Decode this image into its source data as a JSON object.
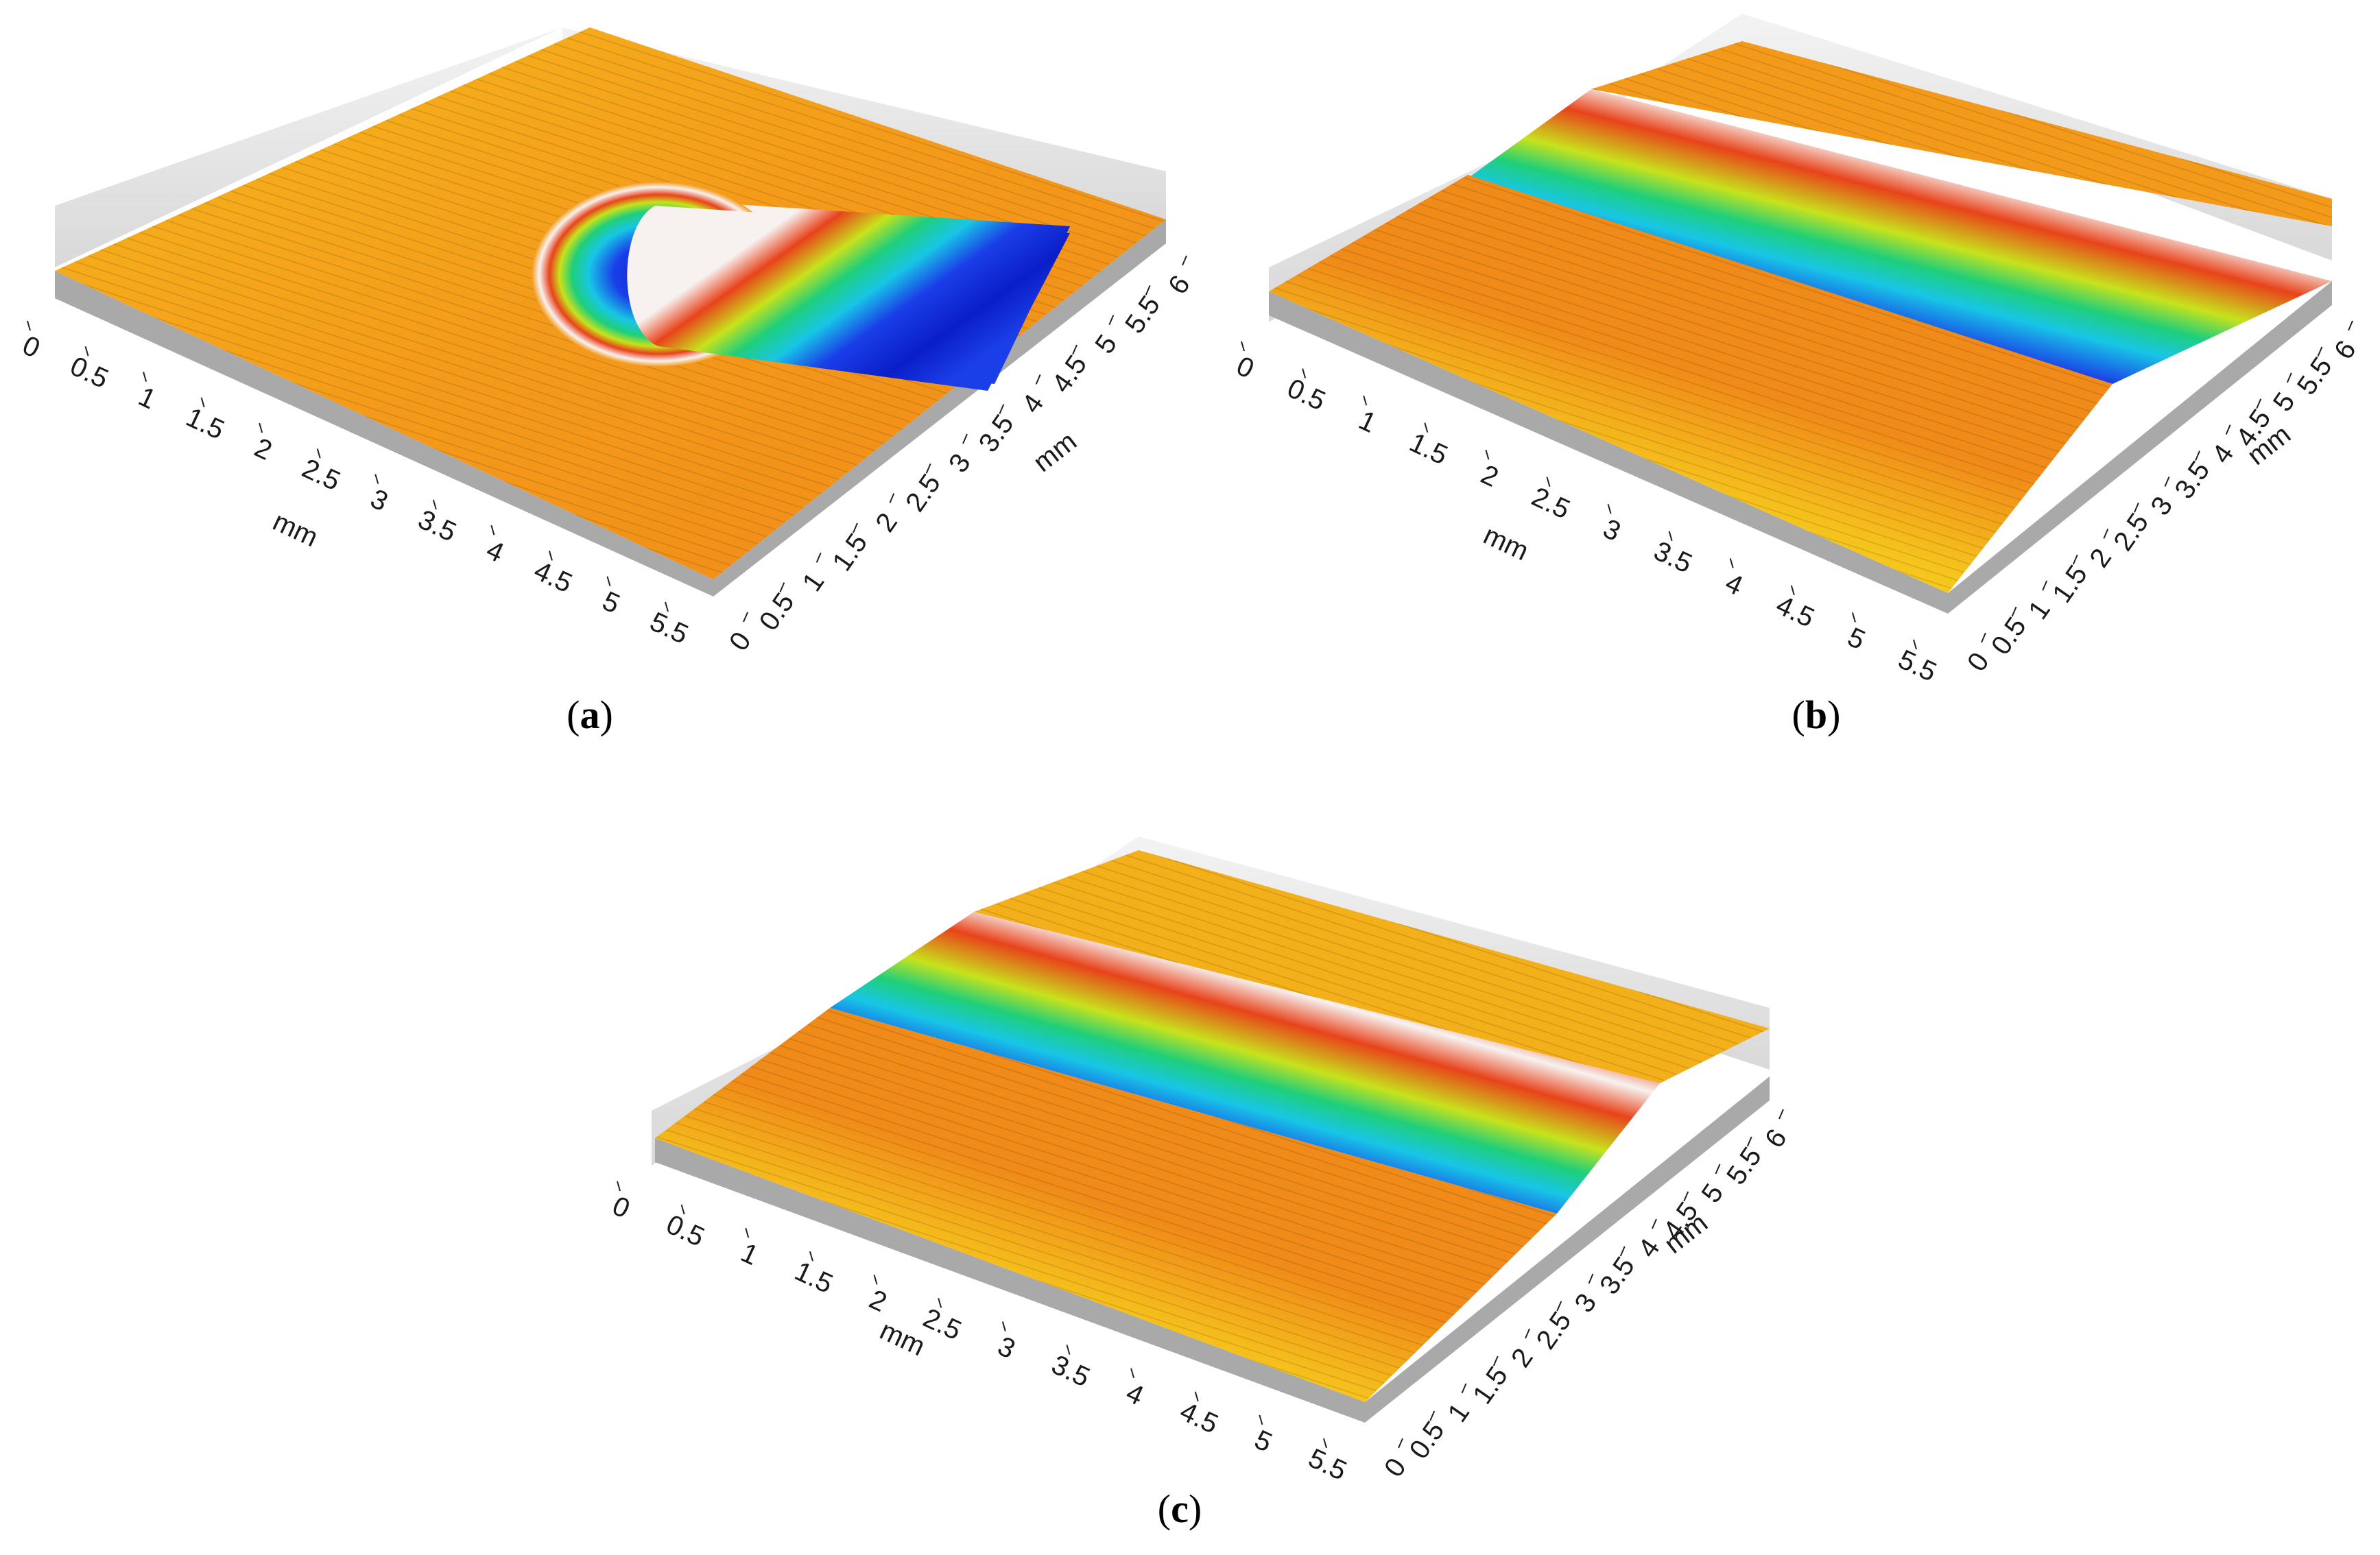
{
  "panels": [
    {
      "id": "a",
      "label": "a",
      "shape": "u-groove",
      "x_axis": {
        "unit": "mm",
        "ticks": [
          "0",
          "0.5",
          "1",
          "1.5",
          "2",
          "2.5",
          "3",
          "3.5",
          "4",
          "4.5",
          "5",
          "5.5"
        ]
      },
      "y_axis": {
        "unit": "mm",
        "ticks": [
          "0",
          "0.5",
          "1",
          "1.5",
          "2",
          "2.5",
          "3",
          "3.5",
          "4",
          "4.5",
          "5",
          "5.5",
          "6"
        ]
      }
    },
    {
      "id": "b",
      "label": "b",
      "shape": "straight-groove",
      "x_axis": {
        "unit": "mm",
        "ticks": [
          "0",
          "0.5",
          "1",
          "1.5",
          "2",
          "2.5",
          "3",
          "3.5",
          "4",
          "4.5",
          "5",
          "5.5"
        ]
      },
      "y_axis": {
        "unit": "mm",
        "ticks": [
          "0",
          "0.5",
          "1",
          "1.5",
          "2",
          "2.5",
          "3",
          "3.5",
          "4",
          "4.5",
          "5",
          "5.5",
          "6"
        ]
      }
    },
    {
      "id": "c",
      "label": "c",
      "shape": "straight-groove",
      "x_axis": {
        "unit": "mm",
        "ticks": [
          "0",
          "0.5",
          "1",
          "1.5",
          "2",
          "2.5",
          "3",
          "3.5",
          "4",
          "4.5",
          "5",
          "5.5"
        ]
      },
      "y_axis": {
        "unit": "mm",
        "ticks": [
          "0",
          "0.5",
          "1",
          "1.5",
          "2",
          "2.5",
          "3",
          "3.5",
          "4",
          "4.5",
          "5",
          "5.5",
          "6"
        ]
      }
    }
  ],
  "colors": {
    "base_side": "#a9a9a9",
    "wall": "#dedede",
    "surface_yellow": "#f2e21c",
    "surface_orange": "#f49a1a",
    "ridge_red": "#e8431a",
    "groove_green": "#1fcf7a",
    "groove_cyan": "#18c6e6",
    "groove_blue": "#1a3ee8",
    "groove_navy": "#0a1ec8",
    "peak_white": "#f7f2f0"
  }
}
